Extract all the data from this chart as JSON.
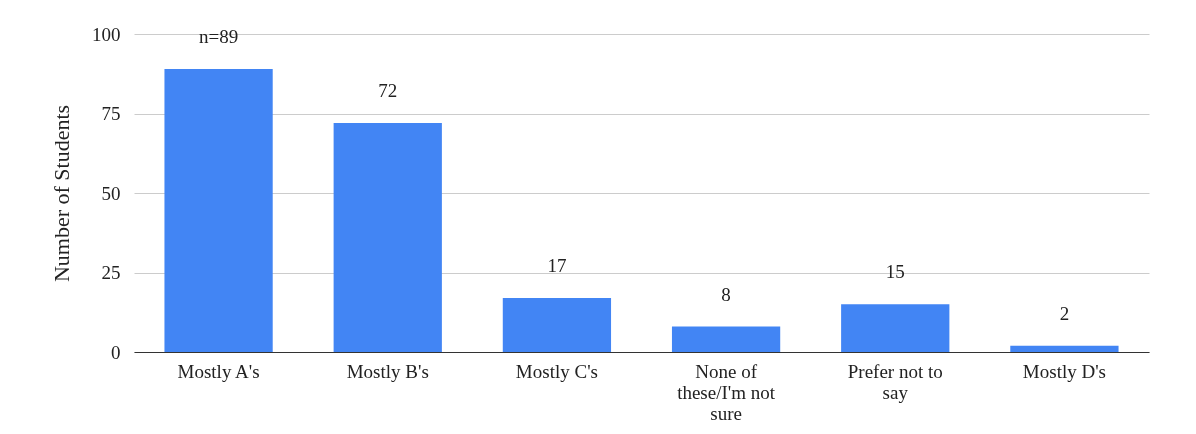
{
  "chart_data": {
    "type": "bar",
    "ylabel": "Number of Students",
    "categories": [
      "Mostly A's",
      "Mostly B's",
      "Mostly C's",
      "None of these/I'm not sure",
      "Prefer not to say",
      "Mostly D's"
    ],
    "values": [
      89,
      72,
      17,
      8,
      15,
      2
    ],
    "value_labels": [
      "n=89",
      "72",
      "17",
      "8",
      "15",
      "2"
    ],
    "color": "#4285f4",
    "ylim": [
      0,
      100
    ],
    "yticks": [
      0,
      25,
      50,
      75,
      100
    ],
    "grid": "y"
  }
}
